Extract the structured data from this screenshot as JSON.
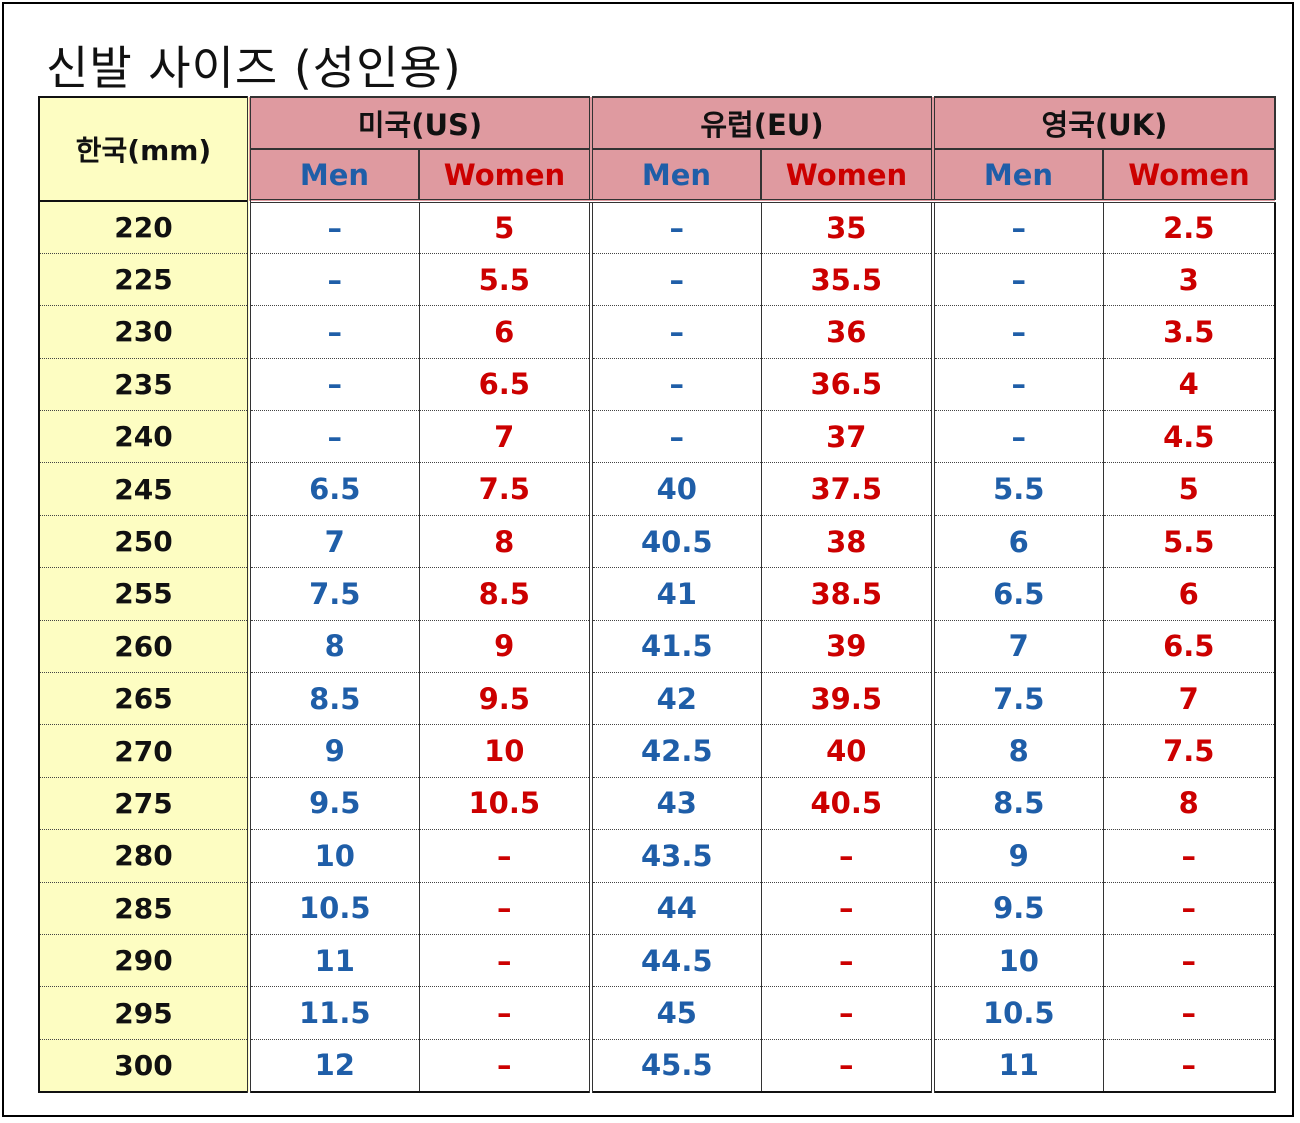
{
  "title": "신발 사이즈 (성인용)",
  "header": {
    "korea": "한국(mm)",
    "groups": [
      "미국(US)",
      "유럽(EU)",
      "영국(UK)"
    ],
    "sub": [
      "Men",
      "Women",
      "Men",
      "Women",
      "Men",
      "Women"
    ]
  },
  "rows": [
    [
      "220",
      "–",
      "5",
      "–",
      "35",
      "–",
      "2.5"
    ],
    [
      "225",
      "–",
      "5.5",
      "–",
      "35.5",
      "–",
      "3"
    ],
    [
      "230",
      "–",
      "6",
      "–",
      "36",
      "–",
      "3.5"
    ],
    [
      "235",
      "–",
      "6.5",
      "–",
      "36.5",
      "–",
      "4"
    ],
    [
      "240",
      "–",
      "7",
      "–",
      "37",
      "–",
      "4.5"
    ],
    [
      "245",
      "6.5",
      "7.5",
      "40",
      "37.5",
      "5.5",
      "5"
    ],
    [
      "250",
      "7",
      "8",
      "40.5",
      "38",
      "6",
      "5.5"
    ],
    [
      "255",
      "7.5",
      "8.5",
      "41",
      "38.5",
      "6.5",
      "6"
    ],
    [
      "260",
      "8",
      "9",
      "41.5",
      "39",
      "7",
      "6.5"
    ],
    [
      "265",
      "8.5",
      "9.5",
      "42",
      "39.5",
      "7.5",
      "7"
    ],
    [
      "270",
      "9",
      "10",
      "42.5",
      "40",
      "8",
      "7.5"
    ],
    [
      "275",
      "9.5",
      "10.5",
      "43",
      "40.5",
      "8.5",
      "8"
    ],
    [
      "280",
      "10",
      "–",
      "43.5",
      "–",
      "9",
      "–"
    ],
    [
      "285",
      "10.5",
      "–",
      "44",
      "–",
      "9.5",
      "–"
    ],
    [
      "290",
      "11",
      "–",
      "44.5",
      "–",
      "10",
      "–"
    ],
    [
      "295",
      "11.5",
      "–",
      "45",
      "–",
      "10.5",
      "–"
    ],
    [
      "300",
      "12",
      "–",
      "45.5",
      "–",
      "11",
      "–"
    ]
  ],
  "colors": {
    "korea_bg": "#fdfdc2",
    "header_bg": "#df9aa0",
    "men_text": "#1f5ea8",
    "women_text": "#cc0000"
  }
}
